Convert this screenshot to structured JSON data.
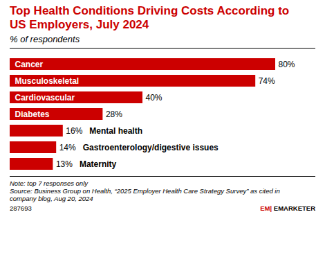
{
  "chart_data": {
    "type": "bar",
    "orientation": "horizontal",
    "title": "Top Health Conditions Driving Costs According to\nUS Employers, July 2024",
    "subtitle": "% of respondents",
    "categories": [
      "Cancer",
      "Musculoskeletal",
      "Cardiovascular",
      "Diabetes",
      "Mental health",
      "Gastroenterology/digestive issues",
      "Maternity"
    ],
    "values": [
      80,
      74,
      40,
      28,
      16,
      14,
      13
    ],
    "value_labels": [
      "80%",
      "74%",
      "40%",
      "28%",
      "16%",
      "14%",
      "13%"
    ],
    "data_labels": true,
    "color": "#CC0000",
    "xlim": [
      0,
      90
    ],
    "tick_labels": false,
    "grid": false,
    "annotations": [
      "Note: top 7 responses only\nSource: Business Group on Health, “2025 Employer Health Care Strategy Survey” as cited in\ncompany blog, Aug 20, 2024",
      "287693",
      "EM|",
      "EMARKETER"
    ]
  }
}
